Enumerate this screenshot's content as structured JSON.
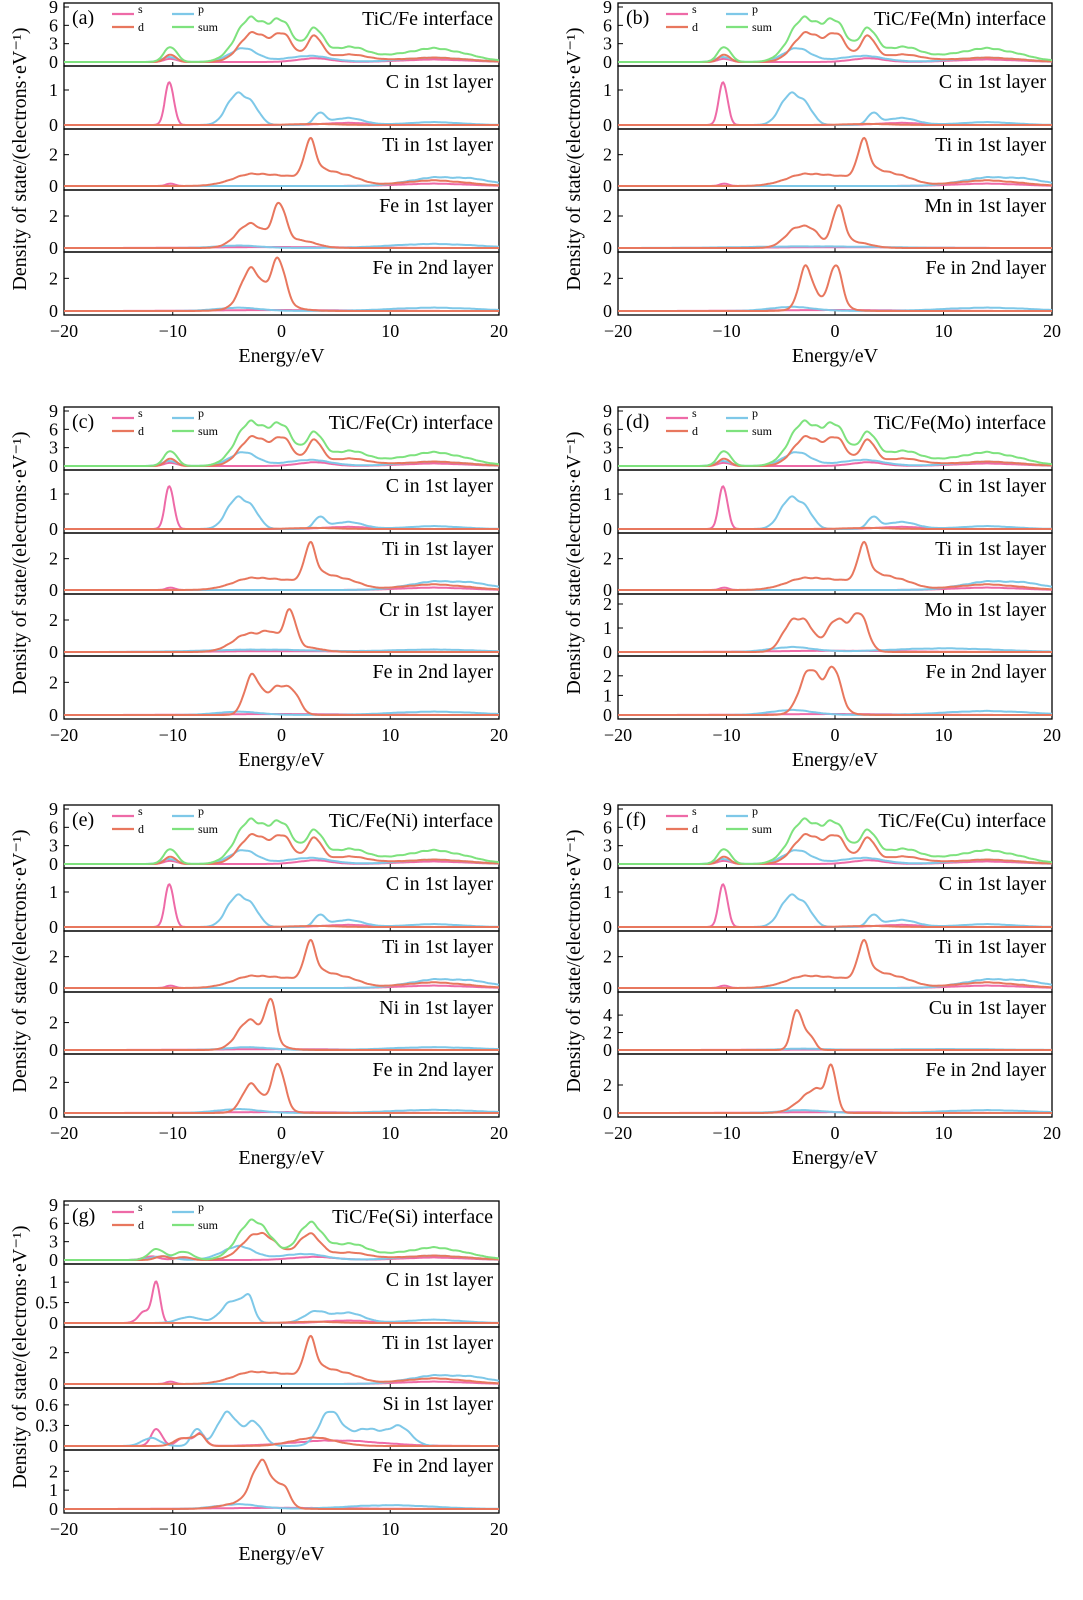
{
  "colors": {
    "s": "#ee6aa7",
    "p": "#7ec8e8",
    "d": "#e8775e",
    "sum": "#7ee27e"
  },
  "legend": [
    "s",
    "p",
    "d",
    "sum"
  ],
  "chart_data": [
    {
      "type": "line",
      "panel_label": "(a)",
      "xlim": [
        -20,
        20
      ],
      "xticks": [
        -20,
        -10,
        0,
        10,
        20
      ],
      "xlabel": "Energy/eV",
      "ylabel": "Density of state/(electrons·eV⁻¹)",
      "subplots": [
        {
          "title": "TiC/Fe interface",
          "ylim": [
            0,
            9
          ],
          "yticks": [
            0,
            3,
            6,
            9
          ],
          "profile": "top_base"
        },
        {
          "title": "C in 1st layer",
          "ylim": [
            0,
            1.4
          ],
          "yticks": [
            0,
            1
          ],
          "profile": "c_base"
        },
        {
          "title": "Ti in 1st layer",
          "ylim": [
            0,
            3
          ],
          "yticks": [
            0,
            2
          ],
          "profile": "ti_base"
        },
        {
          "title": "Fe in 1st layer",
          "ylim": [
            0,
            3
          ],
          "yticks": [
            0,
            2
          ],
          "profile": "fe1_base"
        },
        {
          "title": "Fe in 2nd layer",
          "ylim": [
            0,
            3
          ],
          "yticks": [
            0,
            2
          ],
          "profile": "fe2_base"
        }
      ]
    },
    {
      "type": "line",
      "panel_label": "(b)",
      "xlim": [
        -20,
        20
      ],
      "xticks": [
        -20,
        -10,
        0,
        10,
        20
      ],
      "xlabel": "Energy/eV",
      "ylabel": "Density of state/(electrons·eV⁻¹)",
      "subplots": [
        {
          "title": "TiC/Fe(Mn) interface",
          "ylim": [
            0,
            9
          ],
          "yticks": [
            0,
            3,
            6,
            9
          ],
          "profile": "top_base"
        },
        {
          "title": "C in 1st layer",
          "ylim": [
            0,
            1.4
          ],
          "yticks": [
            0,
            1
          ],
          "profile": "c_base"
        },
        {
          "title": "Ti in 1st layer",
          "ylim": [
            0,
            3
          ],
          "yticks": [
            0,
            2
          ],
          "profile": "ti_base"
        },
        {
          "title": "Mn in 1st layer",
          "ylim": [
            0,
            3
          ],
          "yticks": [
            0,
            2
          ],
          "profile": "mn1"
        },
        {
          "title": "Fe in 2nd layer",
          "ylim": [
            0,
            3
          ],
          "yticks": [
            0,
            2
          ],
          "profile": "fe2_mn"
        }
      ]
    },
    {
      "type": "line",
      "panel_label": "(c)",
      "xlim": [
        -20,
        20
      ],
      "xticks": [
        -20,
        -10,
        0,
        10,
        20
      ],
      "xlabel": "Energy/eV",
      "ylabel": "Density of state/(electrons·eV⁻¹)",
      "subplots": [
        {
          "title": "TiC/Fe(Cr) interface",
          "ylim": [
            0,
            9
          ],
          "yticks": [
            0,
            3,
            6,
            9
          ],
          "profile": "top_base"
        },
        {
          "title": "C in 1st layer",
          "ylim": [
            0,
            1.4
          ],
          "yticks": [
            0,
            1
          ],
          "profile": "c_base"
        },
        {
          "title": "Ti in 1st layer",
          "ylim": [
            0,
            3
          ],
          "yticks": [
            0,
            2
          ],
          "profile": "ti_base"
        },
        {
          "title": "Cr in 1st layer",
          "ylim": [
            0,
            3
          ],
          "yticks": [
            0,
            2
          ],
          "profile": "cr1"
        },
        {
          "title": "Fe in 2nd layer",
          "ylim": [
            0,
            3
          ],
          "yticks": [
            0,
            2
          ],
          "profile": "fe2_cr"
        }
      ]
    },
    {
      "type": "line",
      "panel_label": "(d)",
      "xlim": [
        -20,
        20
      ],
      "xticks": [
        -20,
        -10,
        0,
        10,
        20
      ],
      "xlabel": "Energy/eV",
      "ylabel": "Density of state/(electrons·eV⁻¹)",
      "subplots": [
        {
          "title": "TiC/Fe(Mo) interface",
          "ylim": [
            0,
            9
          ],
          "yticks": [
            0,
            3,
            6,
            9
          ],
          "profile": "top_base"
        },
        {
          "title": "C in 1st layer",
          "ylim": [
            0,
            1.4
          ],
          "yticks": [
            0,
            1
          ],
          "profile": "c_base"
        },
        {
          "title": "Ti in 1st layer",
          "ylim": [
            0,
            3
          ],
          "yticks": [
            0,
            2
          ],
          "profile": "ti_base"
        },
        {
          "title": "Mo in 1st layer",
          "ylim": [
            0,
            2
          ],
          "yticks": [
            0,
            1,
            2
          ],
          "profile": "mo1"
        },
        {
          "title": "Fe in 2nd layer",
          "ylim": [
            0,
            2.5
          ],
          "yticks": [
            0,
            1,
            2
          ],
          "profile": "fe2_mo"
        }
      ]
    },
    {
      "type": "line",
      "panel_label": "(e)",
      "xlim": [
        -20,
        20
      ],
      "xticks": [
        -20,
        -10,
        0,
        10,
        20
      ],
      "xlabel": "Energy/eV",
      "ylabel": "Density of state/(electrons·eV⁻¹)",
      "subplots": [
        {
          "title": "TiC/Fe(Ni) interface",
          "ylim": [
            0,
            9
          ],
          "yticks": [
            0,
            3,
            6,
            9
          ],
          "profile": "top_base"
        },
        {
          "title": "C in 1st layer",
          "ylim": [
            0,
            1.4
          ],
          "yticks": [
            0,
            1
          ],
          "profile": "c_base"
        },
        {
          "title": "Ti in 1st layer",
          "ylim": [
            0,
            3
          ],
          "yticks": [
            0,
            2
          ],
          "profile": "ti_base"
        },
        {
          "title": "Ni in 1st layer",
          "ylim": [
            0,
            3.5
          ],
          "yticks": [
            0,
            2
          ],
          "profile": "ni1"
        },
        {
          "title": "Fe in 2nd layer",
          "ylim": [
            0,
            3.2
          ],
          "yticks": [
            0,
            2
          ],
          "profile": "fe2_ni"
        }
      ]
    },
    {
      "type": "line",
      "panel_label": "(f)",
      "xlim": [
        -20,
        20
      ],
      "xticks": [
        -20,
        -10,
        0,
        10,
        20
      ],
      "xlabel": "Energy/eV",
      "ylabel": "Density of state/(electrons·eV⁻¹)",
      "subplots": [
        {
          "title": "TiC/Fe(Cu) interface",
          "ylim": [
            0,
            9
          ],
          "yticks": [
            0,
            3,
            6,
            9
          ],
          "profile": "top_base"
        },
        {
          "title": "C in 1st layer",
          "ylim": [
            0,
            1.4
          ],
          "yticks": [
            0,
            1
          ],
          "profile": "c_base"
        },
        {
          "title": "Ti in 1st layer",
          "ylim": [
            0,
            3
          ],
          "yticks": [
            0,
            2
          ],
          "profile": "ti_base"
        },
        {
          "title": "Cu in 1st layer",
          "ylim": [
            0,
            5.5
          ],
          "yticks": [
            0,
            2,
            4
          ],
          "profile": "cu1"
        },
        {
          "title": "Fe in 2nd layer",
          "ylim": [
            0,
            3.5
          ],
          "yticks": [
            0,
            2
          ],
          "profile": "fe2_cu"
        }
      ]
    },
    {
      "type": "line",
      "panel_label": "(g)",
      "xlim": [
        -20,
        20
      ],
      "xticks": [
        -20,
        -10,
        0,
        10,
        20
      ],
      "xlabel": "Energy/eV",
      "ylabel": "Density of state/(electrons·eV⁻¹)",
      "subplots": [
        {
          "title": "TiC/Fe(Si) interface",
          "ylim": [
            0,
            9
          ],
          "yticks": [
            0,
            3,
            6,
            9
          ],
          "profile": "top_si"
        },
        {
          "title": "C in 1st layer",
          "ylim": [
            0,
            1.2
          ],
          "yticks": [
            0,
            0.5,
            1.0
          ],
          "profile": "c_si"
        },
        {
          "title": "Ti in 1st layer",
          "ylim": [
            0,
            3
          ],
          "yticks": [
            0,
            2
          ],
          "profile": "ti_base"
        },
        {
          "title": "Si in 1st layer",
          "ylim": [
            0,
            0.7
          ],
          "yticks": [
            0,
            0.3,
            0.6
          ],
          "profile": "si1"
        },
        {
          "title": "Fe in 2nd layer",
          "ylim": [
            0,
            2.6
          ],
          "yticks": [
            0,
            1,
            2
          ],
          "profile": "fe2_si"
        }
      ]
    }
  ]
}
